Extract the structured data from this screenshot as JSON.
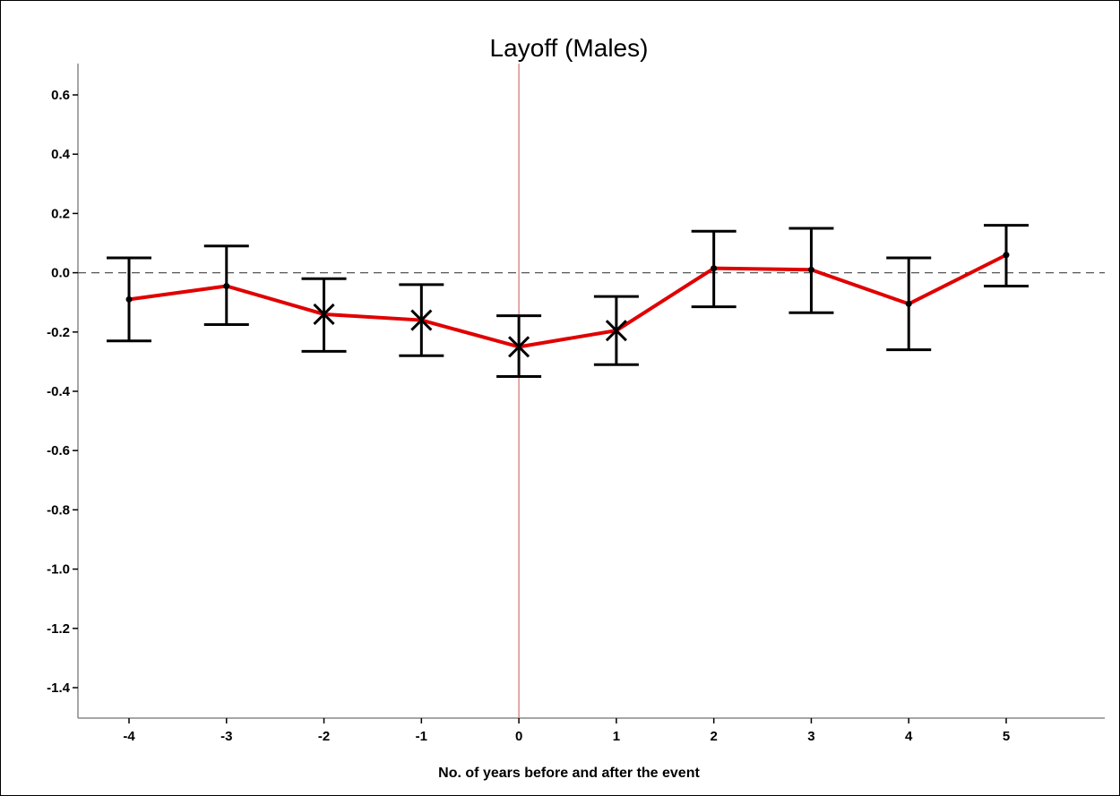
{
  "chart_data": {
    "type": "line",
    "title": "Layoff (Males)",
    "xlabel": "No. of years before and after the event",
    "ylabel": "",
    "x": [
      -4,
      -3,
      -2,
      -1,
      0,
      1,
      2,
      3,
      4,
      5
    ],
    "x_tick_labels": [
      "-4",
      "-3",
      "-2",
      "-1",
      "0",
      "1",
      "2",
      "3",
      "4",
      "5"
    ],
    "y_ticks": [
      0.6,
      0.4,
      0.2,
      0.0,
      -0.2,
      -0.4,
      -0.6,
      -0.8,
      -1.0,
      -1.2,
      -1.4
    ],
    "y_tick_labels": [
      "0.6",
      "0.4",
      "0.2",
      "0.0",
      "-0.2",
      "-0.4",
      "-0.6",
      "-0.8",
      "-1.0",
      "-1.2",
      "-1.4"
    ],
    "ylim": [
      -1.5,
      0.7
    ],
    "xlim": [
      -5,
      6
    ],
    "series": [
      {
        "values": [
          -0.09,
          -0.045,
          -0.14,
          -0.16,
          -0.25,
          -0.195,
          0.015,
          0.01,
          -0.105,
          0.06
        ],
        "ci_lower": [
          -0.23,
          -0.175,
          -0.265,
          -0.28,
          -0.35,
          -0.31,
          -0.115,
          -0.135,
          -0.26,
          -0.045
        ],
        "ci_upper": [
          0.05,
          0.09,
          -0.02,
          -0.04,
          -0.145,
          -0.08,
          0.14,
          0.15,
          0.05,
          0.16
        ],
        "marker": [
          "dot",
          "dot",
          "x",
          "x",
          "x",
          "x",
          "dot",
          "dot",
          "dot",
          "dot"
        ]
      }
    ],
    "reference_lines": {
      "horizontal_y": 0.0,
      "horizontal_style": "dashed",
      "vertical_x": 0
    },
    "colors": {
      "line": "#e00000",
      "errorbar": "#000000",
      "reference_vertical": "#d47070",
      "reference_horizontal": "#555555",
      "axis": "#888888"
    },
    "grid": false,
    "legend": "none"
  }
}
